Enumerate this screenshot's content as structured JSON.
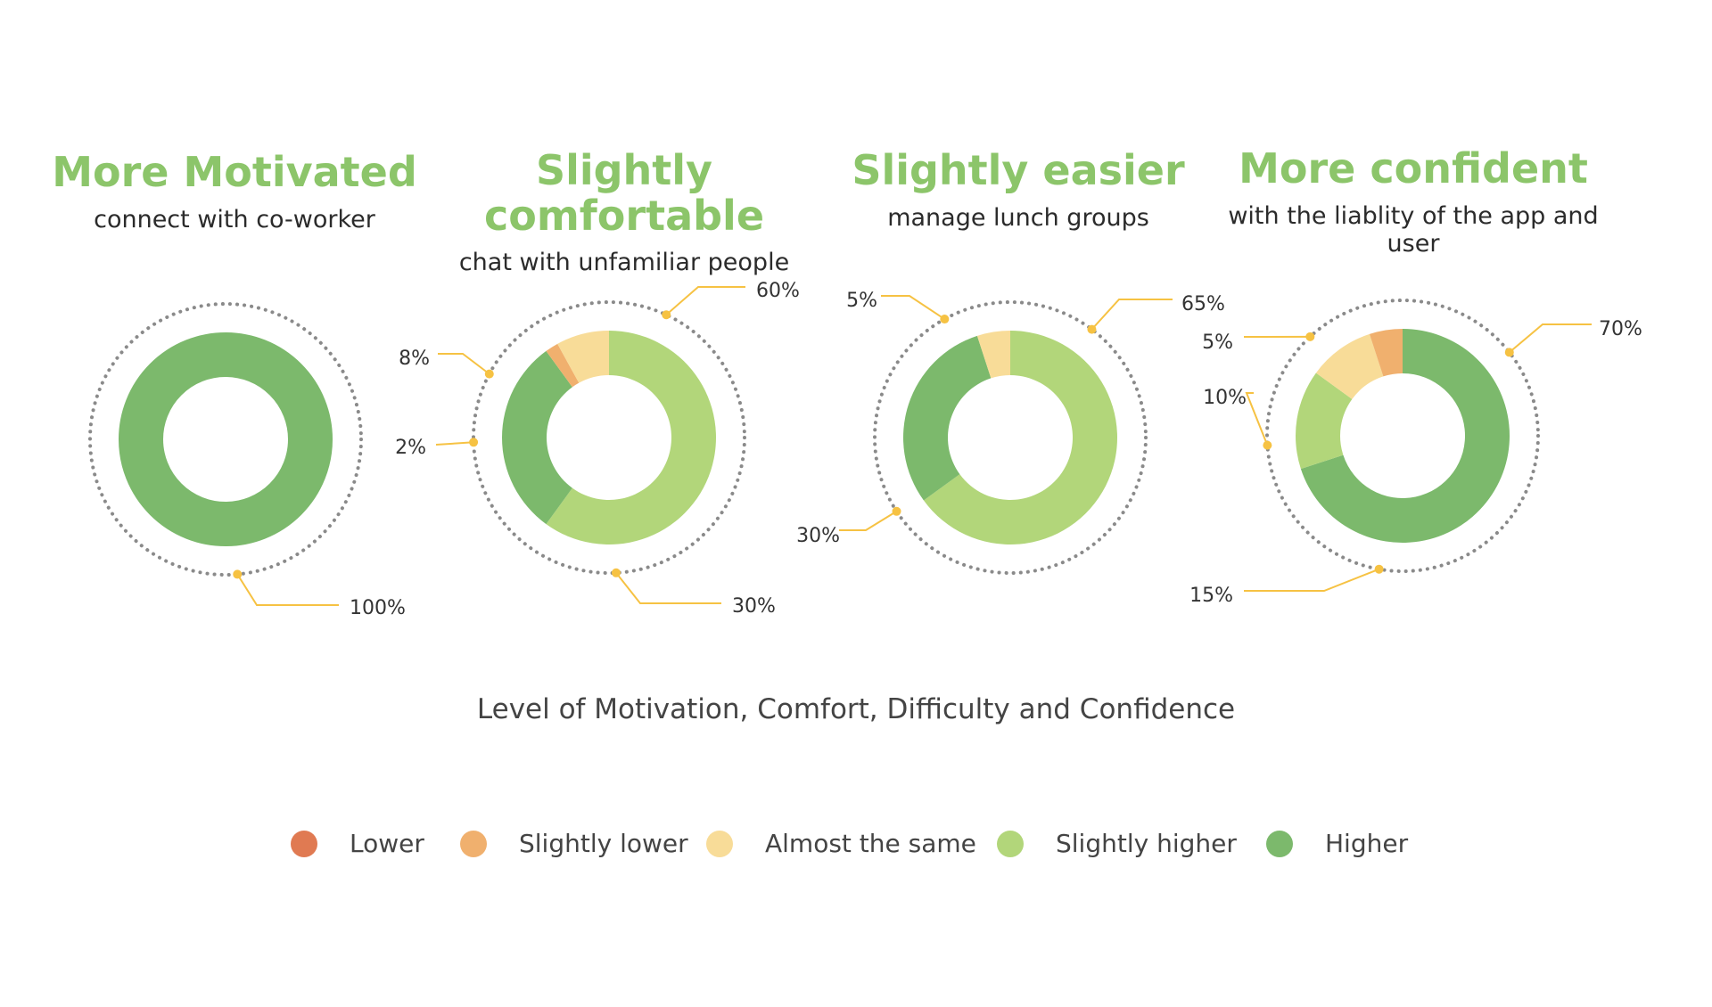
{
  "chart_data": {
    "type": "pie",
    "variant": "donut",
    "title": "Level of Motivation, Comfort, Difficulty and Confidence",
    "categories": [
      "Lower",
      "Slightly lower",
      "Almost the same",
      "Slightly higher",
      "Higher"
    ],
    "colors": {
      "Lower": "#e07a52",
      "Slightly lower": "#f0b06e",
      "Almost the same": "#f8dc98",
      "Slightly higher": "#b2d67a",
      "Higher": "#7cb96c"
    },
    "charts": [
      {
        "title": "More Motivated",
        "subtitle": "connect with co-worker",
        "slices": [
          {
            "category": "Higher",
            "value": 100,
            "label": "100%"
          }
        ]
      },
      {
        "title": "Slightly comfortable",
        "subtitle": "chat with unfamiliar people",
        "slices": [
          {
            "category": "Slightly higher",
            "value": 60,
            "label": "60%"
          },
          {
            "category": "Higher",
            "value": 30,
            "label": "30%"
          },
          {
            "category": "Slightly lower",
            "value": 2,
            "label": "2%"
          },
          {
            "category": "Almost the same",
            "value": 8,
            "label": "8%"
          }
        ]
      },
      {
        "title": "Slightly easier",
        "subtitle": "manage lunch groups",
        "slices": [
          {
            "category": "Slightly higher",
            "value": 65,
            "label": "65%"
          },
          {
            "category": "Higher",
            "value": 30,
            "label": "30%"
          },
          {
            "category": "Almost the same",
            "value": 5,
            "label": "5%"
          }
        ]
      },
      {
        "title": "More confident",
        "subtitle": "with the liablity of the app and user",
        "slices": [
          {
            "category": "Higher",
            "value": 70,
            "label": "70%"
          },
          {
            "category": "Slightly higher",
            "value": 15,
            "label": "15%"
          },
          {
            "category": "Almost the same",
            "value": 10,
            "label": "10%"
          },
          {
            "category": "Slightly lower",
            "value": 5,
            "label": "5%"
          }
        ]
      }
    ]
  },
  "colors": {
    "title_green": "#8cc56a",
    "callout": "#f6c243",
    "dotted_ring": "#8a8a8a"
  }
}
